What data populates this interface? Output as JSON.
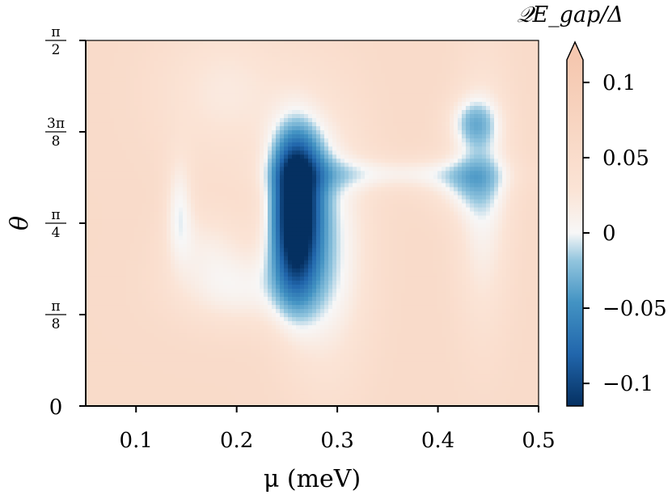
{
  "chart_data": {
    "type": "heatmap",
    "xlabel": "μ (meV)",
    "ylabel": "θ",
    "colorbar_label": "𝒬E_gap/Δ",
    "xlim": [
      0.05,
      0.5
    ],
    "ylim": [
      0,
      1.5708
    ],
    "x_ticks": [
      {
        "value": 0.1,
        "label": "0.1"
      },
      {
        "value": 0.2,
        "label": "0.2"
      },
      {
        "value": 0.3,
        "label": "0.3"
      },
      {
        "value": 0.4,
        "label": "0.4"
      },
      {
        "value": 0.5,
        "label": "0.5"
      }
    ],
    "y_ticks": [
      {
        "value": 0,
        "label": "0"
      },
      {
        "value": 0.3927,
        "num": "π",
        "den": "8"
      },
      {
        "value": 0.7854,
        "num": "π",
        "den": "4"
      },
      {
        "value": 1.1781,
        "num": "3π",
        "den": "8"
      },
      {
        "value": 1.5708,
        "num": "π",
        "den": "2"
      }
    ],
    "colorbar": {
      "vmin": -0.115,
      "vmax": 0.115,
      "extend": "max",
      "colormap": "RdBu_r",
      "ticks": [
        {
          "value": 0.1,
          "label": "0.1"
        },
        {
          "value": 0.05,
          "label": "0.05"
        },
        {
          "value": 0,
          "label": "0"
        },
        {
          "value": -0.05,
          "label": "−0.05"
        },
        {
          "value": -0.1,
          "label": "−0.1"
        }
      ]
    },
    "background_value": 0.055,
    "features": [
      {
        "mu": 0.258,
        "theta": 0.8,
        "value": -0.115,
        "sigma_mu": 0.017,
        "sigma_theta": 0.23
      },
      {
        "mu": 0.26,
        "theta": 1.05,
        "value": -0.05,
        "sigma_mu": 0.02,
        "sigma_theta": 0.12
      },
      {
        "mu": 0.143,
        "theta": 0.86,
        "value": -0.045,
        "sigma_mu": 0.01,
        "sigma_theta": 0.16
      },
      {
        "mu": 0.435,
        "theta": 1.22,
        "value": -0.055,
        "sigma_mu": 0.018,
        "sigma_theta": 0.08
      },
      {
        "mu": 0.425,
        "theta": 0.95,
        "value": -0.035,
        "sigma_mu": 0.028,
        "sigma_theta": 0.09
      },
      {
        "mu": 0.29,
        "theta": 0.7,
        "value": -0.06,
        "sigma_mu": 0.03,
        "sigma_theta": 0.4
      },
      {
        "mu": 0.2,
        "theta": 0.5,
        "value": -0.045,
        "sigma_mu": 0.045,
        "sigma_theta": 0.12
      },
      {
        "mu": 0.36,
        "theta": 1.0,
        "value": -0.04,
        "sigma_mu": 0.07,
        "sigma_theta": 0.05
      },
      {
        "mu": 0.445,
        "theta": 0.9,
        "value": -0.05,
        "sigma_mu": 0.02,
        "sigma_theta": 0.4
      },
      {
        "mu": 0.19,
        "theta": 1.35,
        "value": -0.035,
        "sigma_mu": 0.05,
        "sigma_theta": 0.22
      },
      {
        "mu": 0.17,
        "theta": 0.7,
        "value": -0.03,
        "sigma_mu": 0.03,
        "sigma_theta": 0.12
      }
    ],
    "grid": false,
    "legend": "none"
  }
}
